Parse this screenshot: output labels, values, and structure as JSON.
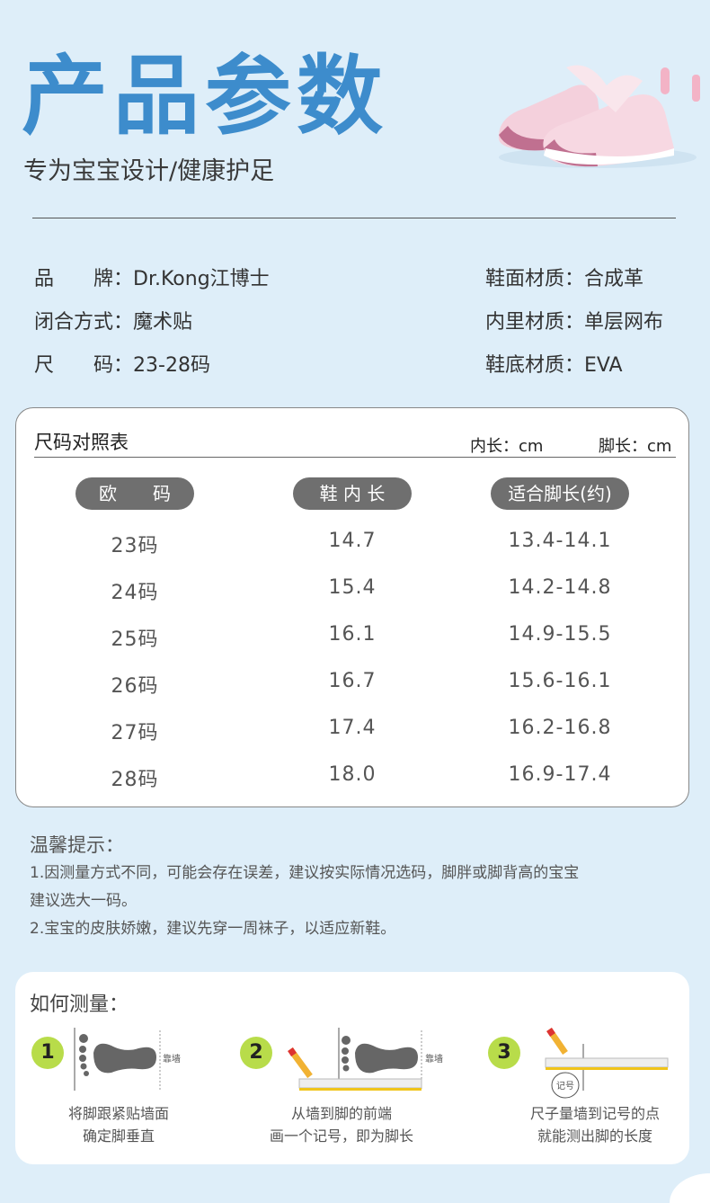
{
  "header": {
    "title": "产品参数",
    "subtitle": "专为宝宝设计/健康护足"
  },
  "specs": {
    "left": [
      {
        "label": "品　　牌：",
        "value": "Dr.Kong江博士"
      },
      {
        "label": "闭合方式：",
        "value": "魔术贴"
      },
      {
        "label": "尺　　码：",
        "value": "23-28码"
      }
    ],
    "right": [
      {
        "label": "鞋面材质：",
        "value": "合成革"
      },
      {
        "label": "内里材质：",
        "value": "单层网布"
      },
      {
        "label": "鞋底材质：",
        "value": "EVA"
      }
    ]
  },
  "size_table": {
    "title": "尺码对照表",
    "unit_inner": "内长：cm",
    "unit_foot": "脚长：cm",
    "headers": [
      "欧　　码",
      "鞋 内 长",
      "适合脚长(约)"
    ],
    "rows": [
      [
        "23码",
        "14.7",
        "13.4-14.1"
      ],
      [
        "24码",
        "15.4",
        "14.2-14.8"
      ],
      [
        "25码",
        "16.1",
        "14.9-15.5"
      ],
      [
        "26码",
        "16.7",
        "15.6-16.1"
      ],
      [
        "27码",
        "17.4",
        "16.2-16.8"
      ],
      [
        "28码",
        "18.0",
        "16.9-17.4"
      ]
    ]
  },
  "tips": {
    "heading": "温馨提示：",
    "line1a": "1.因测量方式不同，可能会存在误差，建议按实际情况选码，脚胖或脚背高的宝宝",
    "line1b": "建议选大一码。",
    "line2": "2.宝宝的皮肤娇嫩，建议先穿一周袜子，以适应新鞋。"
  },
  "how": {
    "title": "如何测量：",
    "wall_label": "靠墙",
    "mark_label": "记号",
    "steps": [
      {
        "num": "1",
        "line1": "将脚跟紧贴墙面",
        "line2": "确定脚垂直"
      },
      {
        "num": "2",
        "line1": "从墙到脚的前端",
        "line2": "画一个记号，即为脚长"
      },
      {
        "num": "3",
        "line1": "尺子量墙到记号的点",
        "line2": "就能测出脚的长度"
      }
    ]
  },
  "colors": {
    "background": "#deeef9",
    "title": "#3d8ccc",
    "pill": "#6f6f6f",
    "step_badge": "#b8dc4a"
  }
}
